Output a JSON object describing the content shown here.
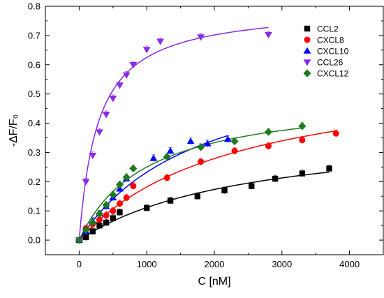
{
  "chart_data": {
    "type": "scatter",
    "xlabel": "C [nM]",
    "ylabel": "-ΔF/F₀",
    "xlim": [
      -500,
      4500
    ],
    "ylim": [
      -0.05,
      0.8
    ],
    "x_ticks": [
      0,
      1000,
      2000,
      3000,
      4000
    ],
    "y_ticks": [
      0.0,
      0.1,
      0.2,
      0.3,
      0.4,
      0.5,
      0.6,
      0.7,
      0.8
    ],
    "x_tick_labels": [
      "0",
      "1000",
      "2000",
      "3000",
      "4000"
    ],
    "y_tick_labels": [
      "0.0",
      "0.1",
      "0.2",
      "0.3",
      "0.4",
      "0.5",
      "0.6",
      "0.7",
      "0.8"
    ],
    "legend_position": "top-right",
    "series": [
      {
        "name": "CCL2",
        "color": "#000000",
        "marker": "square",
        "points": [
          {
            "x": 0,
            "y": 0.0
          },
          {
            "x": 100,
            "y": 0.01
          },
          {
            "x": 200,
            "y": 0.03
          },
          {
            "x": 300,
            "y": 0.05
          },
          {
            "x": 400,
            "y": 0.06
          },
          {
            "x": 500,
            "y": 0.075
          },
          {
            "x": 600,
            "y": 0.095
          },
          {
            "x": 1000,
            "y": 0.11
          },
          {
            "x": 1350,
            "y": 0.135
          },
          {
            "x": 1750,
            "y": 0.15
          },
          {
            "x": 2150,
            "y": 0.17
          },
          {
            "x": 2550,
            "y": 0.185
          },
          {
            "x": 2900,
            "y": 0.21
          },
          {
            "x": 3300,
            "y": 0.228
          },
          {
            "x": 3700,
            "y": 0.245
          }
        ],
        "fit": {
          "bmax": 0.39,
          "kd": 2500,
          "xmax": 3700
        }
      },
      {
        "name": "CXCL8",
        "color": "#ff0000",
        "marker": "circle",
        "points": [
          {
            "x": 0,
            "y": 0.0
          },
          {
            "x": 100,
            "y": 0.04
          },
          {
            "x": 200,
            "y": 0.055
          },
          {
            "x": 300,
            "y": 0.07
          },
          {
            "x": 400,
            "y": 0.085
          },
          {
            "x": 500,
            "y": 0.1
          },
          {
            "x": 600,
            "y": 0.125
          },
          {
            "x": 700,
            "y": 0.145
          },
          {
            "x": 800,
            "y": 0.185
          },
          {
            "x": 1300,
            "y": 0.213
          },
          {
            "x": 1800,
            "y": 0.268
          },
          {
            "x": 2300,
            "y": 0.305
          },
          {
            "x": 2800,
            "y": 0.322
          },
          {
            "x": 3300,
            "y": 0.342
          },
          {
            "x": 3800,
            "y": 0.365
          }
        ],
        "fit": {
          "bmax": 0.6,
          "kd": 2300,
          "xmax": 3800
        }
      },
      {
        "name": "CXCL10",
        "color": "#0000ff",
        "marker": "triangle-up",
        "points": [
          {
            "x": 0,
            "y": 0.0
          },
          {
            "x": 100,
            "y": 0.03
          },
          {
            "x": 200,
            "y": 0.065
          },
          {
            "x": 300,
            "y": 0.09
          },
          {
            "x": 400,
            "y": 0.115
          },
          {
            "x": 500,
            "y": 0.145
          },
          {
            "x": 600,
            "y": 0.175
          },
          {
            "x": 700,
            "y": 0.21
          },
          {
            "x": 1100,
            "y": 0.28
          },
          {
            "x": 1350,
            "y": 0.305
          },
          {
            "x": 1650,
            "y": 0.338
          },
          {
            "x": 1900,
            "y": 0.33
          },
          {
            "x": 2200,
            "y": 0.345
          }
        ],
        "fit": {
          "bmax": 0.65,
          "kd": 1800,
          "xmax": 2200
        }
      },
      {
        "name": "CCL26",
        "color": "#8b28e6",
        "marker": "triangle-down",
        "points": [
          {
            "x": 0,
            "y": 0.0
          },
          {
            "x": 100,
            "y": 0.2
          },
          {
            "x": 200,
            "y": 0.29
          },
          {
            "x": 300,
            "y": 0.37
          },
          {
            "x": 400,
            "y": 0.43
          },
          {
            "x": 500,
            "y": 0.485
          },
          {
            "x": 600,
            "y": 0.53
          },
          {
            "x": 700,
            "y": 0.565
          },
          {
            "x": 800,
            "y": 0.6
          },
          {
            "x": 1000,
            "y": 0.652
          },
          {
            "x": 1200,
            "y": 0.68
          },
          {
            "x": 1800,
            "y": 0.695
          },
          {
            "x": 2800,
            "y": 0.703
          }
        ],
        "fit": {
          "bmax": 0.8,
          "kd": 280,
          "xmax": 2800
        }
      },
      {
        "name": "CXCL12",
        "color": "#1f7a1f",
        "marker": "diamond",
        "points": [
          {
            "x": 0,
            "y": 0.0
          },
          {
            "x": 100,
            "y": 0.035
          },
          {
            "x": 200,
            "y": 0.06
          },
          {
            "x": 300,
            "y": 0.09
          },
          {
            "x": 400,
            "y": 0.12
          },
          {
            "x": 500,
            "y": 0.155
          },
          {
            "x": 600,
            "y": 0.19
          },
          {
            "x": 700,
            "y": 0.215
          },
          {
            "x": 800,
            "y": 0.245
          },
          {
            "x": 1300,
            "y": 0.285
          },
          {
            "x": 1800,
            "y": 0.318
          },
          {
            "x": 2300,
            "y": 0.338
          },
          {
            "x": 2800,
            "y": 0.37
          },
          {
            "x": 3300,
            "y": 0.39
          }
        ],
        "fit": {
          "bmax": 0.5,
          "kd": 1000,
          "xmax": 3300
        }
      }
    ]
  }
}
